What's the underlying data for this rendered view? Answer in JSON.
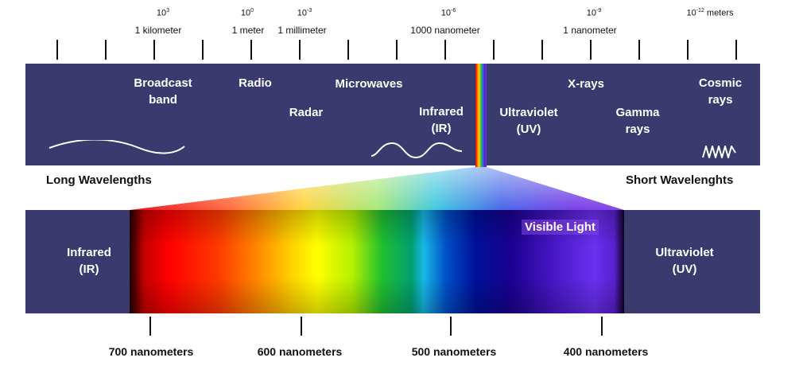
{
  "scale": {
    "exponents": [
      {
        "base": "10",
        "exp": "3",
        "suffix": ""
      },
      {
        "base": "10",
        "exp": "0",
        "suffix": ""
      },
      {
        "base": "10",
        "exp": "-3",
        "suffix": ""
      },
      {
        "base": "10",
        "exp": "-6",
        "suffix": ""
      },
      {
        "base": "10",
        "exp": "-9",
        "suffix": ""
      },
      {
        "base": "10",
        "exp": "-12",
        "suffix": " meters"
      }
    ],
    "units": [
      "1 kilometer",
      "1 meter",
      "1 millimeter",
      "1000 nanometer",
      "1 nanometer"
    ]
  },
  "bands": {
    "broadcast": "Broadcast",
    "broadcast_2": "band",
    "radio": "Radio",
    "radar": "Radar",
    "microwaves": "Microwaves",
    "infrared": "Infrared",
    "infrared_2": "(IR)",
    "ultraviolet": "Ultraviolet",
    "ultraviolet_2": "(UV)",
    "xrays": "X-rays",
    "gamma": "Gamma",
    "gamma_2": "rays",
    "cosmic": "Cosmic",
    "cosmic_2": "rays"
  },
  "sides": {
    "long": "Long Wavelengths",
    "short": "Short Wavelenghts"
  },
  "visible": {
    "infrared": "Infrared",
    "infrared_2": "(IR)",
    "visible_light": "Visible Light",
    "ultraviolet": "Ultraviolet",
    "ultraviolet_2": "(UV)"
  },
  "nanometers": [
    "700 nanometers",
    "600 nanometers",
    "500 nanometers",
    "400 nanometers"
  ],
  "colors": {
    "band_background": "#3a3a6e",
    "text_on_band": "#ffffff"
  }
}
